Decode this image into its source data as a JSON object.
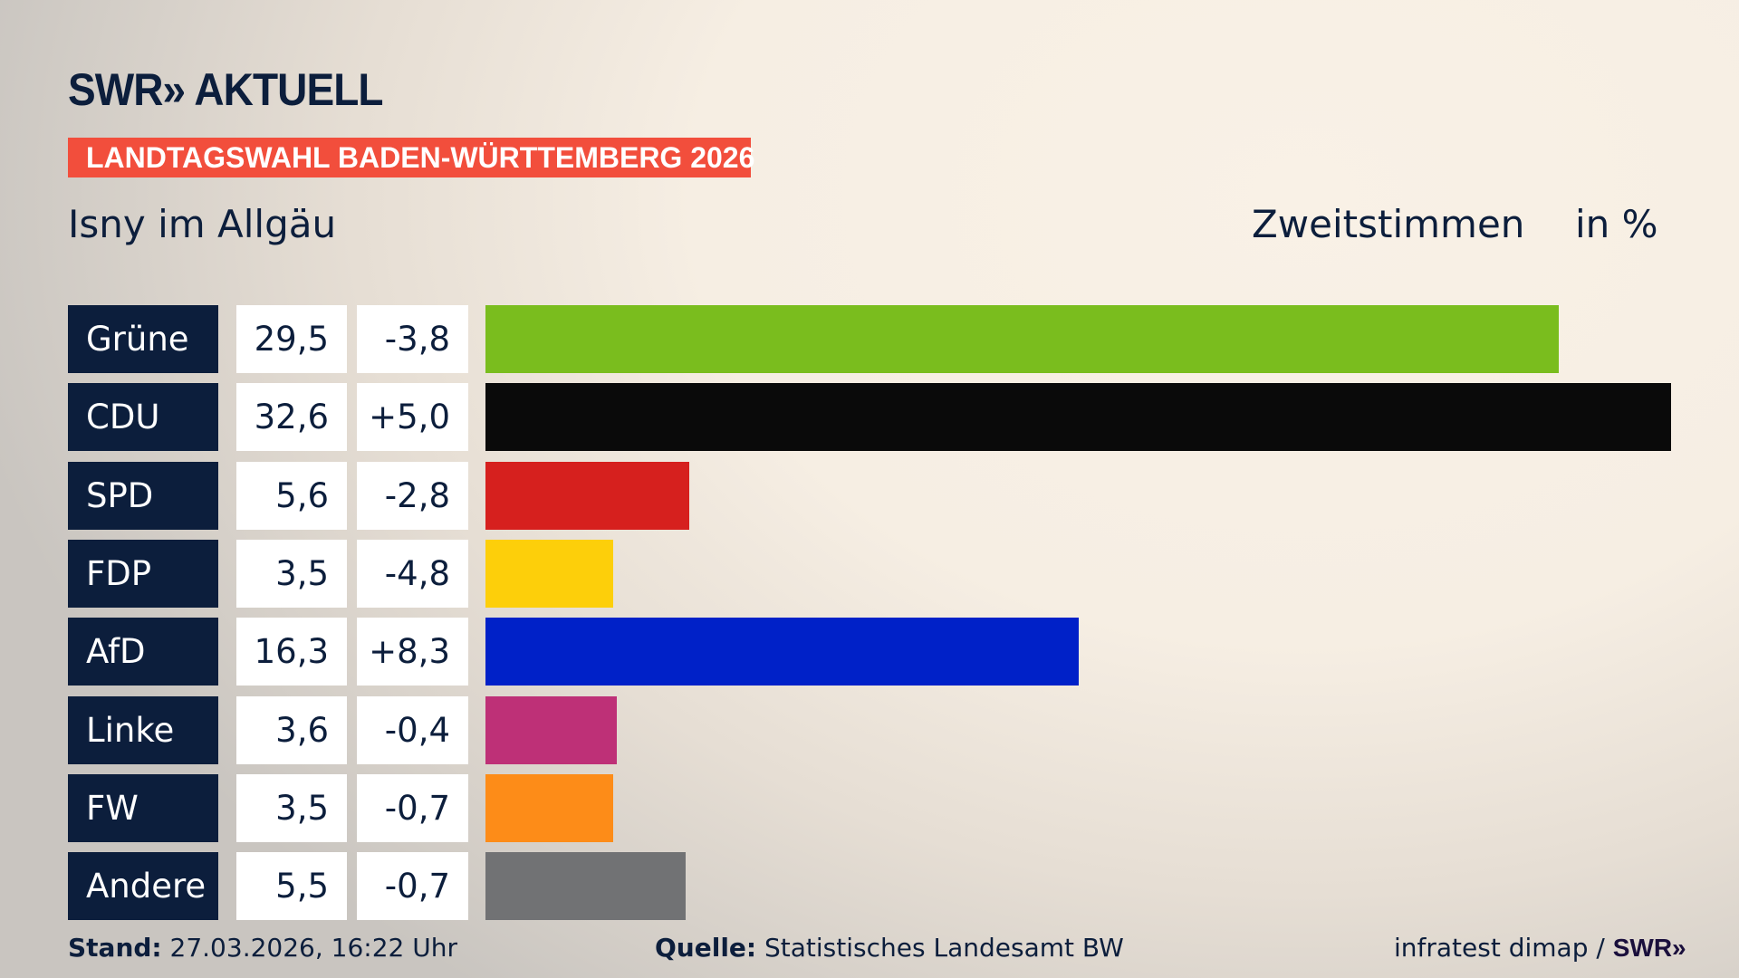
{
  "header": {
    "logo": "SWR» AKTUELL",
    "banner": "LANDTAGSWAHL BADEN-WÜRTTEMBERG 2026",
    "location": "Isny im Allgäu",
    "vote_type": "Zweitstimmen",
    "unit": "in %"
  },
  "colors": {
    "accent": "#f24e3c",
    "navy": "#0c1e3c"
  },
  "chart_data": {
    "type": "bar",
    "orientation": "horizontal",
    "unit": "%",
    "categories": [
      "Grüne",
      "CDU",
      "SPD",
      "FDP",
      "AfD",
      "Linke",
      "FW",
      "Andere"
    ],
    "values": [
      29.5,
      32.6,
      5.6,
      3.5,
      16.3,
      3.6,
      3.5,
      5.5
    ],
    "labels": [
      "29,5",
      "32,6",
      "5,6",
      "3,5",
      "16,3",
      "3,6",
      "3,5",
      "5,5"
    ],
    "changes": [
      -3.8,
      5.0,
      -2.8,
      -4.8,
      8.3,
      -0.4,
      -0.7,
      -0.7
    ],
    "change_labels": [
      "-3,8",
      "+5,0",
      "-2,8",
      "-4,8",
      "+8,3",
      "-0,4",
      "-0,7",
      "-0,7"
    ],
    "bar_colors": [
      "#7abd1e",
      "#0a0a0a",
      "#d6201e",
      "#fdcf0a",
      "#0021c8",
      "#be3077",
      "#fd8c18",
      "#717274"
    ]
  },
  "footer": {
    "stand_label": "Stand:",
    "stand_value": "27.03.2026, 16:22 Uhr",
    "source_label": "Quelle:",
    "source_value": "Statistisches Landesamt BW",
    "credit": "infratest dimap / ",
    "credit_logo": "SWR»"
  }
}
